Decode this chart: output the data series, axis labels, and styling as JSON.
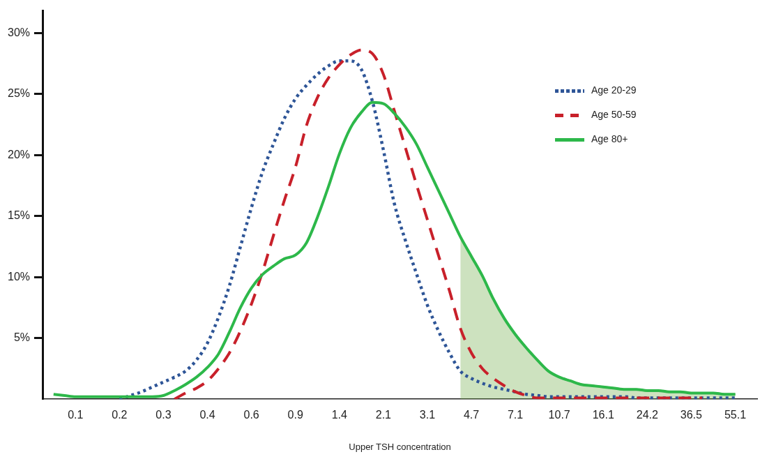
{
  "chart_data": {
    "type": "line",
    "xlabel": "Upper TSH concentration",
    "categories": [
      null,
      null,
      null,
      "0.1",
      null,
      null,
      null,
      "0.2",
      null,
      null,
      null,
      "0.3",
      null,
      null,
      null,
      "0.4",
      null,
      null,
      null,
      "0.6",
      null,
      null,
      null,
      "0.9",
      null,
      null,
      null,
      "1.4",
      null,
      null,
      null,
      "2.1",
      null,
      null,
      null,
      "3.1",
      null,
      null,
      null,
      "4.7",
      null,
      null,
      null,
      "7.1",
      null,
      null,
      null,
      "10.7",
      null,
      null,
      null,
      "16.1",
      null,
      null,
      null,
      "24.2",
      null,
      null,
      null,
      "36.5",
      null,
      null,
      null,
      "55.1",
      null,
      null
    ],
    "ylim": [
      0,
      31.8
    ],
    "yticks": [
      {
        "value": 5,
        "label": "5%"
      },
      {
        "value": 10,
        "label": "10%"
      },
      {
        "value": 15,
        "label": "15%"
      },
      {
        "value": 20,
        "label": "20%"
      },
      {
        "value": 25,
        "label": "25%"
      },
      {
        "value": 30,
        "label": "30%"
      }
    ],
    "legend": "right",
    "marker": "none",
    "series": [
      {
        "type": "area",
        "color": "#70ad47",
        "values": [
          null,
          null,
          null,
          null,
          null,
          null,
          null,
          null,
          null,
          null,
          null,
          null,
          null,
          null,
          null,
          null,
          null,
          null,
          null,
          null,
          null,
          null,
          null,
          null,
          null,
          null,
          null,
          null,
          null,
          null,
          null,
          null,
          null,
          null,
          null,
          null,
          null,
          null,
          13.3,
          11.7,
          10.1,
          8.2,
          6.6,
          5.3,
          4.2,
          3.2,
          2.3,
          1.8,
          1.5,
          1.2,
          1.1,
          1.0,
          0.9,
          0.8,
          0.8,
          0.7,
          0.7,
          0.6,
          0.6,
          0.5,
          0.5,
          0.5,
          0.4,
          0.4,
          null,
          null
        ]
      },
      {
        "name": "Age 20-29",
        "color": "#2e5597",
        "line_style": "dotted",
        "values": [
          null,
          null,
          null,
          null,
          null,
          null,
          null,
          0.0,
          0.3,
          0.6,
          1.0,
          1.4,
          1.8,
          2.3,
          3.2,
          4.6,
          6.7,
          9.3,
          12.5,
          15.7,
          18.6,
          20.9,
          23.0,
          24.6,
          25.7,
          26.6,
          27.3,
          27.7,
          27.7,
          27.0,
          24.4,
          20.4,
          16.0,
          13.0,
          10.3,
          7.7,
          5.6,
          3.8,
          2.3,
          1.7,
          1.3,
          1.0,
          0.8,
          0.6,
          0.4,
          0.3,
          0.2,
          0.2,
          0.2,
          0.2,
          0.2,
          0.2,
          0.2,
          0.2,
          0.1,
          0.1,
          0.1,
          0.1,
          0.1,
          0.1,
          0.1,
          0.1,
          0.1,
          0.1,
          null,
          null
        ]
      },
      {
        "name": "Age 50-59",
        "color": "#c8202a",
        "line_style": "dashed",
        "values": [
          null,
          null,
          null,
          null,
          null,
          null,
          null,
          null,
          null,
          null,
          null,
          null,
          0,
          0.5,
          0.9,
          1.5,
          2.5,
          3.8,
          5.6,
          7.8,
          10.4,
          13.4,
          16.3,
          19.0,
          22.4,
          24.7,
          26.3,
          27.4,
          28.2,
          28.6,
          28.3,
          26.6,
          23.6,
          20.6,
          17.6,
          14.7,
          11.8,
          8.9,
          5.8,
          3.8,
          2.5,
          1.7,
          1.1,
          0.6,
          0.3,
          0.1,
          0.1,
          0.1,
          0.1,
          0.1,
          0.1,
          0.1,
          0.1,
          0.1,
          0.1,
          0.1,
          0.1,
          0.1,
          0.1,
          0.1,
          0.1,
          null,
          null,
          null,
          null,
          null
        ]
      },
      {
        "name": "Age 80+",
        "color": "#2db84a",
        "line_style": "solid",
        "values": [
          null,
          0.4,
          0.3,
          0.2,
          0.2,
          0.2,
          0.2,
          0.2,
          0.2,
          0.2,
          0.2,
          0.3,
          0.7,
          1.2,
          1.8,
          2.6,
          3.7,
          5.5,
          7.5,
          9.1,
          10.2,
          10.9,
          11.5,
          11.8,
          12.8,
          14.9,
          17.4,
          20.1,
          22.2,
          23.5,
          24.3,
          24.2,
          23.4,
          22.3,
          20.9,
          19.0,
          17.1,
          15.2,
          13.3,
          11.7,
          10.1,
          8.2,
          6.6,
          5.3,
          4.2,
          3.2,
          2.3,
          1.8,
          1.5,
          1.2,
          1.1,
          1.0,
          0.9,
          0.8,
          0.8,
          0.7,
          0.7,
          0.6,
          0.6,
          0.5,
          0.5,
          0.5,
          0.4,
          0.4,
          null,
          null
        ]
      }
    ]
  }
}
